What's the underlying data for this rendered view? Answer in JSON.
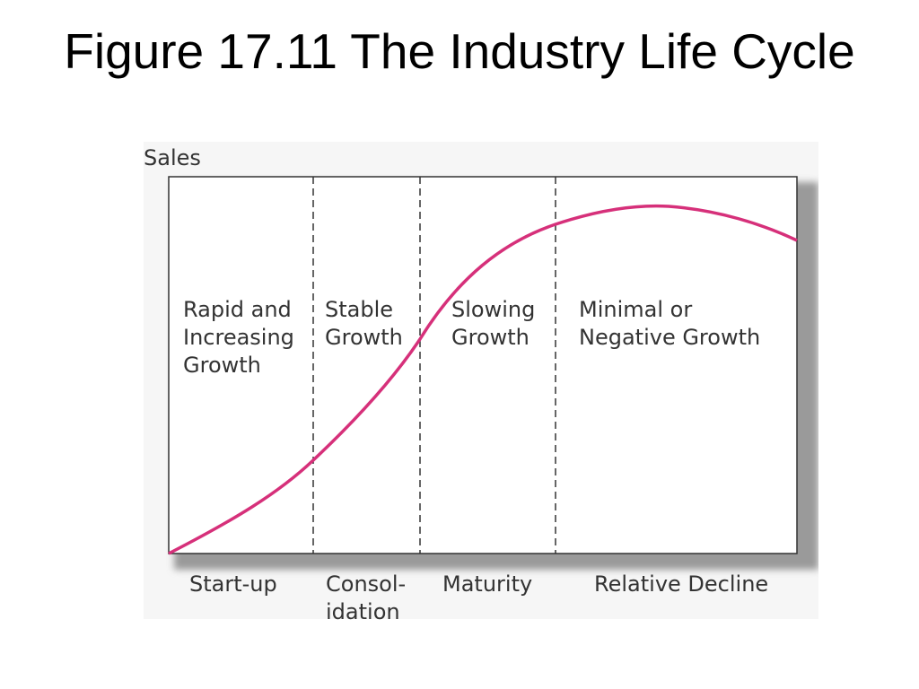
{
  "title": "Figure 17.11 The Industry Life Cycle",
  "axis_label": "Sales",
  "stages": [
    {
      "description": [
        "Rapid and",
        "Increasing",
        "Growth"
      ],
      "name": [
        "Start-up"
      ]
    },
    {
      "description": [
        "Stable",
        "Growth"
      ],
      "name": [
        "Consol-",
        "idation"
      ]
    },
    {
      "description": [
        "Slowing",
        "Growth"
      ],
      "name": [
        "Maturity"
      ]
    },
    {
      "description": [
        "Minimal or",
        "Negative Growth"
      ],
      "name": [
        "Relative Decline"
      ]
    }
  ]
}
